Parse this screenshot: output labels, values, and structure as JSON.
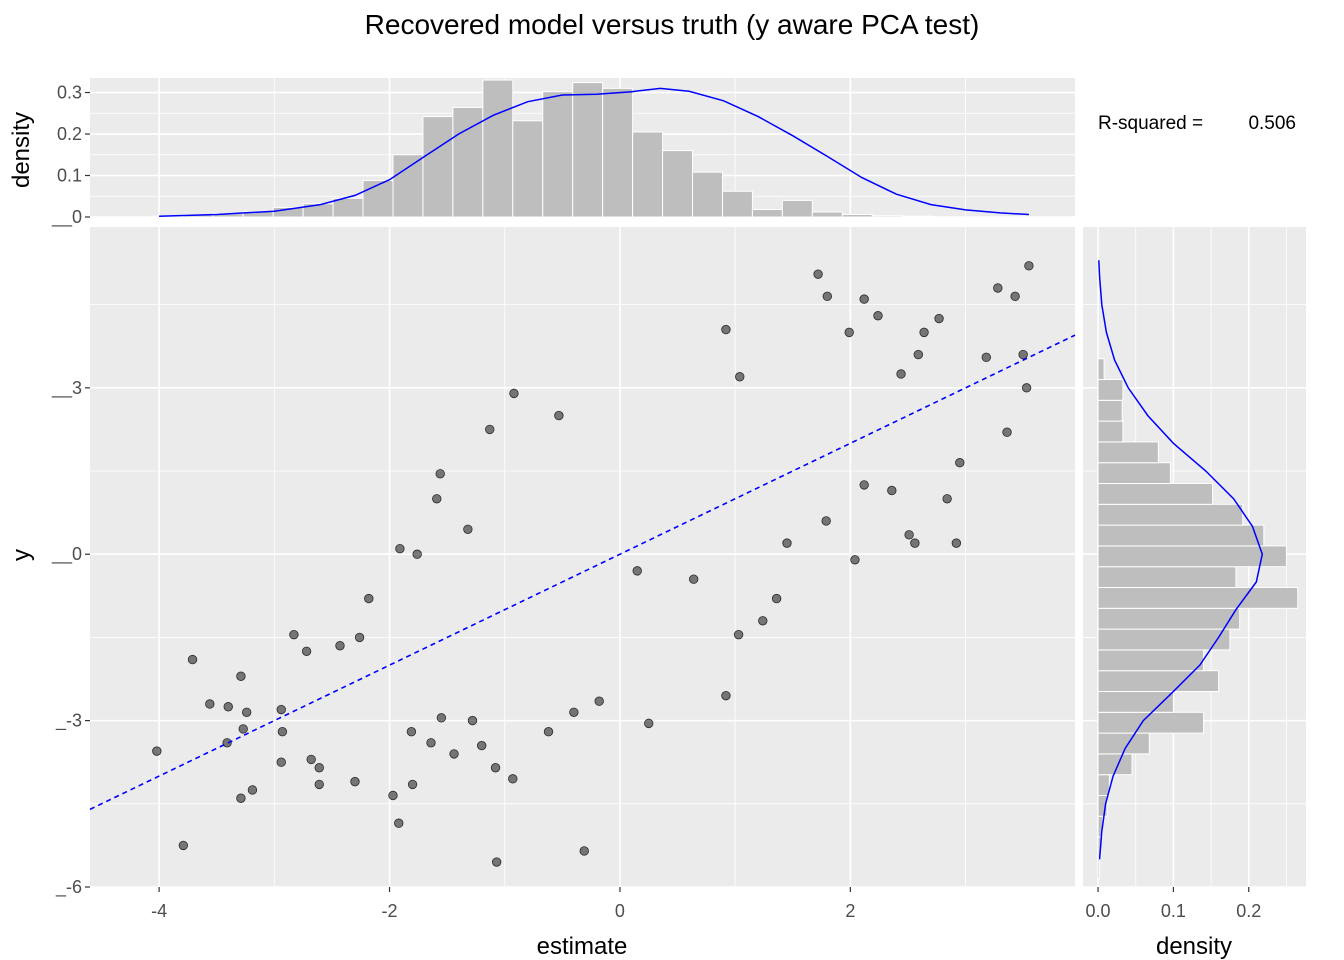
{
  "chart_data": {
    "type": "scatter",
    "title": "Recovered model versus truth (y aware PCA test)",
    "xlabel": "estimate",
    "ylabel": "y",
    "annotation": {
      "label": "R-squared = ",
      "value": "0.506"
    },
    "xlim": [
      -4.6,
      3.95
    ],
    "ylim": [
      -6.0,
      5.9
    ],
    "x_ticks": [
      -4,
      -2,
      0,
      2
    ],
    "x_tick_labels": [
      "-4",
      "-2",
      "0",
      "2"
    ],
    "y_ticks": [
      -6,
      -3,
      0,
      3
    ],
    "y_tick_labels": [
      "_-6",
      "_-3",
      "__0",
      "__3"
    ],
    "grid": true,
    "point_color": "#000000",
    "point_alpha": 0.5,
    "fit_line": {
      "color": "#0000ff",
      "style": "dashed",
      "slope": 1.0,
      "intercept": 0.0
    },
    "points": [
      [
        3.55,
        5.2
      ],
      [
        1.72,
        5.05
      ],
      [
        3.28,
        4.8
      ],
      [
        3.43,
        4.65
      ],
      [
        1.8,
        4.65
      ],
      [
        2.12,
        4.6
      ],
      [
        2.24,
        4.3
      ],
      [
        2.77,
        4.25
      ],
      [
        2.64,
        4.0
      ],
      [
        0.92,
        4.05
      ],
      [
        1.99,
        4.0
      ],
      [
        3.5,
        3.6
      ],
      [
        3.18,
        3.55
      ],
      [
        2.59,
        3.6
      ],
      [
        2.44,
        3.25
      ],
      [
        3.53,
        3.0
      ],
      [
        1.04,
        3.2
      ],
      [
        -0.92,
        2.9
      ],
      [
        -0.53,
        2.5
      ],
      [
        3.36,
        2.2
      ],
      [
        2.95,
        1.65
      ],
      [
        -1.13,
        2.25
      ],
      [
        -1.56,
        1.45
      ],
      [
        -1.59,
        1.0
      ],
      [
        2.12,
        1.25
      ],
      [
        2.36,
        1.15
      ],
      [
        2.84,
        1.0
      ],
      [
        -1.32,
        0.45
      ],
      [
        2.56,
        0.2
      ],
      [
        2.51,
        0.35
      ],
      [
        2.92,
        0.2
      ],
      [
        -1.91,
        0.1
      ],
      [
        -1.76,
        0.0
      ],
      [
        -2.18,
        -0.8
      ],
      [
        -2.26,
        -1.5
      ],
      [
        -2.43,
        -1.65
      ],
      [
        -2.72,
        -1.75
      ],
      [
        -2.83,
        -1.45
      ],
      [
        -3.71,
        -1.9
      ],
      [
        -3.29,
        -2.2
      ],
      [
        -3.56,
        -2.7
      ],
      [
        -3.4,
        -2.75
      ],
      [
        -3.24,
        -2.85
      ],
      [
        -2.94,
        -2.8
      ],
      [
        -2.93,
        -3.2
      ],
      [
        -3.27,
        -3.15
      ],
      [
        -3.41,
        -3.4
      ],
      [
        -4.02,
        -3.55
      ],
      [
        -2.94,
        -3.75
      ],
      [
        -2.68,
        -3.7
      ],
      [
        -2.61,
        -3.85
      ],
      [
        -2.61,
        -4.15
      ],
      [
        -3.19,
        -4.25
      ],
      [
        -3.29,
        -4.4
      ],
      [
        -1.97,
        -4.35
      ],
      [
        -1.92,
        -4.85
      ],
      [
        -3.79,
        -5.25
      ],
      [
        -1.07,
        -5.55
      ],
      [
        -0.31,
        -5.35
      ],
      [
        -2.3,
        -4.1
      ],
      [
        -1.8,
        -4.15
      ],
      [
        -0.93,
        -4.05
      ],
      [
        -1.08,
        -3.85
      ],
      [
        -1.44,
        -3.6
      ],
      [
        -1.64,
        -3.4
      ],
      [
        -1.81,
        -3.2
      ],
      [
        -1.2,
        -3.45
      ],
      [
        -1.55,
        -2.95
      ],
      [
        -1.28,
        -3.0
      ],
      [
        -0.62,
        -3.2
      ],
      [
        -0.4,
        -2.85
      ],
      [
        -0.18,
        -2.65
      ],
      [
        0.92,
        -2.55
      ],
      [
        0.25,
        -3.05
      ],
      [
        1.03,
        -1.45
      ],
      [
        1.24,
        -1.2
      ],
      [
        1.36,
        -0.8
      ],
      [
        2.04,
        -0.1
      ],
      [
        1.45,
        0.2
      ],
      [
        1.79,
        0.6
      ],
      [
        0.64,
        -0.45
      ],
      [
        0.15,
        -0.3
      ]
    ],
    "marginal_x": {
      "ylabel": "density",
      "ylim": [
        0,
        0.335
      ],
      "y_ticks": [
        0,
        0.1,
        0.2,
        0.3
      ],
      "y_tick_labels": [
        "__0",
        "0.1",
        "0.2",
        "0.3"
      ],
      "bin_start": -4.05,
      "bin_width": 0.26,
      "bin_density": [
        0.002,
        0.005,
        0.008,
        0.013,
        0.023,
        0.032,
        0.045,
        0.088,
        0.15,
        0.242,
        0.264,
        0.33,
        0.232,
        0.302,
        0.324,
        0.31,
        0.205,
        0.16,
        0.108,
        0.062,
        0.018,
        0.04,
        0.012,
        0.006,
        0.003,
        0.002
      ],
      "bar_color": "#bebebe",
      "curve_color": "#0000ff",
      "curve": [
        [
          -4.0,
          0.002
        ],
        [
          -3.5,
          0.006
        ],
        [
          -3.0,
          0.014
        ],
        [
          -2.6,
          0.03
        ],
        [
          -2.3,
          0.052
        ],
        [
          -2.0,
          0.09
        ],
        [
          -1.7,
          0.145
        ],
        [
          -1.4,
          0.2
        ],
        [
          -1.1,
          0.245
        ],
        [
          -0.8,
          0.278
        ],
        [
          -0.5,
          0.294
        ],
        [
          -0.2,
          0.296
        ],
        [
          0.1,
          0.302
        ],
        [
          0.35,
          0.31
        ],
        [
          0.6,
          0.303
        ],
        [
          0.9,
          0.28
        ],
        [
          1.2,
          0.242
        ],
        [
          1.5,
          0.196
        ],
        [
          1.8,
          0.146
        ],
        [
          2.1,
          0.095
        ],
        [
          2.4,
          0.055
        ],
        [
          2.7,
          0.03
        ],
        [
          3.0,
          0.017
        ],
        [
          3.3,
          0.01
        ],
        [
          3.55,
          0.006
        ]
      ]
    },
    "marginal_y": {
      "xlabel": "density",
      "xlim": [
        -0.02,
        0.276
      ],
      "x_ticks": [
        0,
        0.1,
        0.2
      ],
      "x_tick_labels": [
        "0.0",
        "0.1",
        "0.2"
      ],
      "bin_start": -5.85,
      "bin_width": 0.375,
      "bin_density": [
        0.002,
        0.004,
        0.006,
        0.012,
        0.015,
        0.045,
        0.068,
        0.14,
        0.1,
        0.16,
        0.14,
        0.175,
        0.188,
        0.265,
        0.183,
        0.25,
        0.22,
        0.192,
        0.152,
        0.096,
        0.08,
        0.033,
        0.032,
        0.033,
        0.008
      ],
      "bar_color": "#bebebe",
      "curve_color": "#0000ff",
      "curve": [
        [
          -5.5,
          0.002
        ],
        [
          -5.0,
          0.005
        ],
        [
          -4.5,
          0.01
        ],
        [
          -4.0,
          0.02
        ],
        [
          -3.5,
          0.036
        ],
        [
          -3.0,
          0.06
        ],
        [
          -2.5,
          0.098
        ],
        [
          -2.0,
          0.135
        ],
        [
          -1.5,
          0.16
        ],
        [
          -1.0,
          0.183
        ],
        [
          -0.5,
          0.21
        ],
        [
          0.0,
          0.218
        ],
        [
          0.5,
          0.205
        ],
        [
          1.0,
          0.18
        ],
        [
          1.5,
          0.143
        ],
        [
          2.0,
          0.1
        ],
        [
          2.5,
          0.066
        ],
        [
          3.0,
          0.04
        ],
        [
          3.5,
          0.022
        ],
        [
          4.0,
          0.011
        ],
        [
          4.5,
          0.005
        ],
        [
          5.0,
          0.002
        ],
        [
          5.3,
          0.001
        ]
      ]
    }
  }
}
